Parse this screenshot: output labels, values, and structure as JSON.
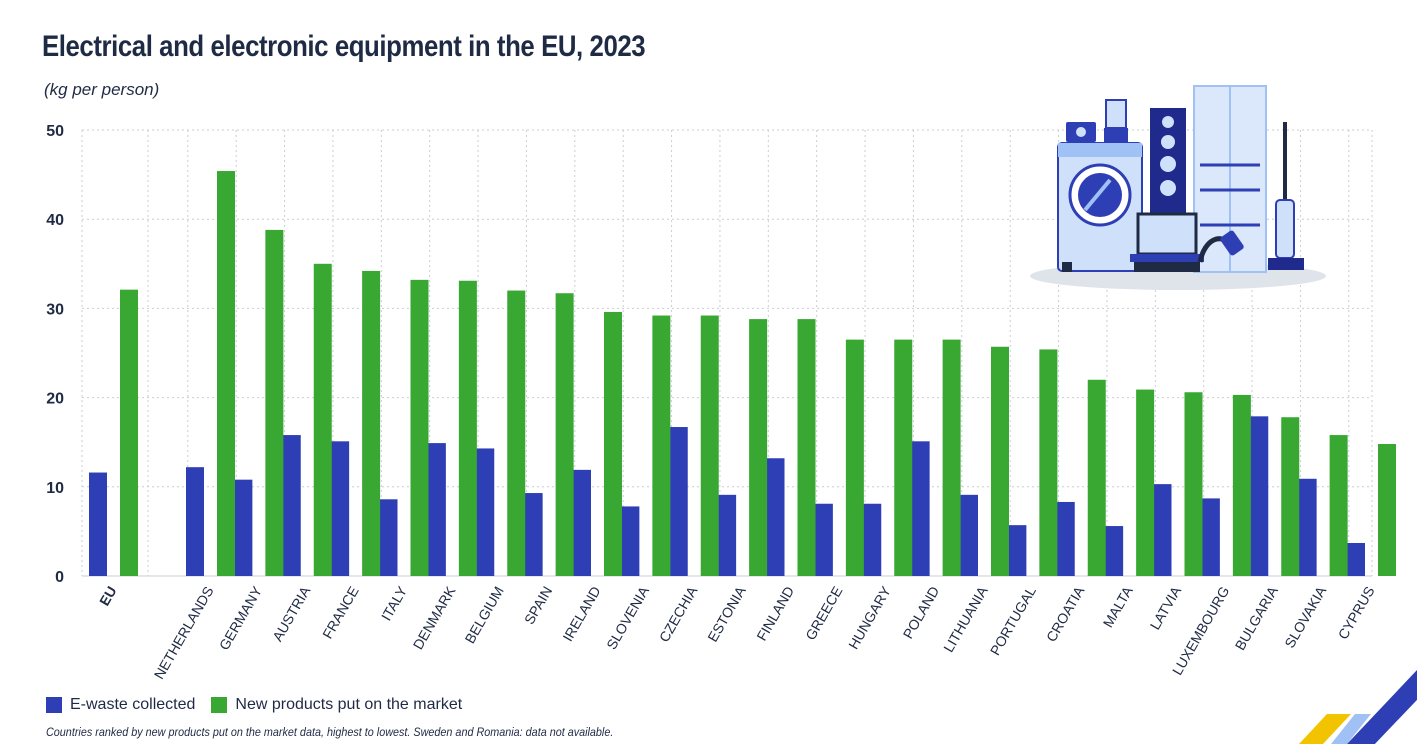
{
  "colors": {
    "ewaste": "#2e3fb5",
    "new_products": "#38a832",
    "grid": "#c9cdd6",
    "axis": "#1f2a44"
  },
  "illustration": "electrical-appliances-illustration",
  "chart_data": {
    "type": "bar",
    "title": "Electrical and electronic equipment in the EU, 2023",
    "subtitle": "(kg per person)",
    "categories": [
      "EU",
      "NETHERLANDS",
      "GERMANY",
      "AUSTRIA",
      "FRANCE",
      "ITALY",
      "DENMARK",
      "BELGIUM",
      "SPAIN",
      "IRELAND",
      "SLOVENIA",
      "CZECHIA",
      "ESTONIA",
      "FINLAND",
      "GREECE",
      "HUNGARY",
      "POLAND",
      "LITHUANIA",
      "PORTUGAL",
      "CROATIA",
      "MALTA",
      "LATVIA",
      "LUXEMBOURG",
      "BULGARIA",
      "SLOVAKIA",
      "CYPRUS"
    ],
    "series": [
      {
        "name": "E-waste collected",
        "color": "#2e3fb5",
        "values": [
          11.6,
          12.2,
          10.8,
          15.8,
          15.1,
          8.6,
          14.9,
          14.3,
          9.3,
          11.9,
          7.8,
          16.7,
          9.1,
          13.2,
          8.1,
          8.1,
          15.1,
          9.1,
          5.7,
          8.3,
          5.6,
          10.3,
          8.7,
          17.9,
          10.9,
          3.7
        ]
      },
      {
        "name": "New products put on the market",
        "color": "#38a832",
        "values": [
          32.1,
          45.4,
          38.8,
          35.0,
          34.2,
          33.2,
          33.1,
          32.0,
          31.7,
          29.6,
          29.2,
          29.2,
          28.8,
          28.8,
          26.5,
          26.5,
          26.5,
          25.7,
          25.4,
          22.0,
          20.9,
          20.6,
          20.3,
          17.8,
          15.8,
          14.8
        ]
      }
    ],
    "xlabel": "",
    "ylabel": "",
    "ylim": [
      0,
      50
    ],
    "yticks": [
      0,
      10,
      20,
      30,
      40,
      50
    ],
    "grid": true,
    "legend_position": "bottom-left",
    "legend": [
      "E-waste collected",
      "New products put on the market"
    ],
    "footnote": "Countries ranked by new products put on the market data, highest to lowest. Sweden and Romania: data not available."
  }
}
